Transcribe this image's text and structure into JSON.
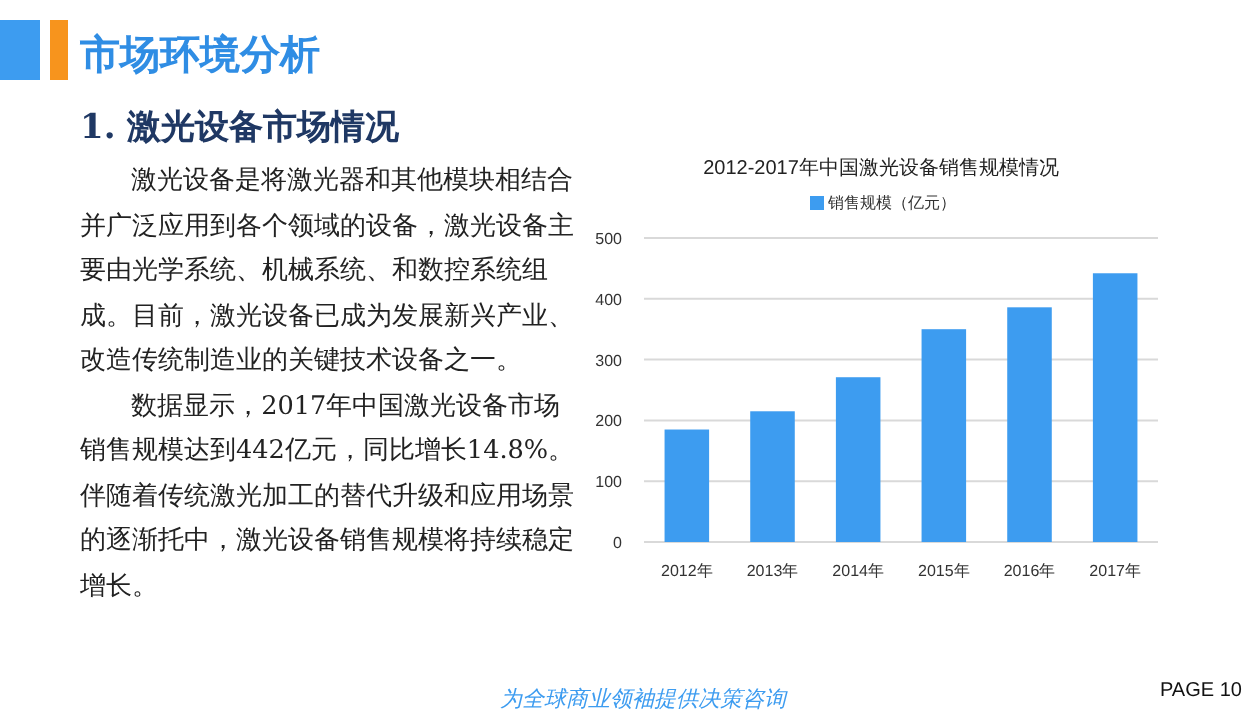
{
  "chart_data": {
    "type": "bar",
    "title": "2012-2017年中国激光设备销售规模情况",
    "categories": [
      "2012年",
      "2013年",
      "2014年",
      "2015年",
      "2016年",
      "2017年"
    ],
    "series": [
      {
        "name": "销售规模（亿元）",
        "color": "#3d9cf0",
        "values": [
          185,
          215,
          271,
          350,
          386,
          442
        ]
      }
    ],
    "ylim": [
      0,
      500
    ],
    "yticks": [
      0,
      100,
      200,
      300,
      400,
      500
    ],
    "grid": "y",
    "legend": "top",
    "annotations": [
      "市场环境分析",
      "1. 激光设备市场情况",
      "激光设备是将激光器和其他模块相结合并广泛应用到各个领域的设备，激光设备主要由光学系统、机械系统、和数控系统组成。目前，激光设备已成为发展新兴产业、改造传统制造业的关键技术设备之一。",
      "数据显示，2017年中国激光设备市场销售规模达到442亿元，同比增长14.8%。伴随着传统激光加工的替代升级和应用场景的逐渐托中，激光设备销售规模将持续稳定增长。",
      "为全球商业领袖提供决策咨询",
      "PAGE 10"
    ]
  }
}
